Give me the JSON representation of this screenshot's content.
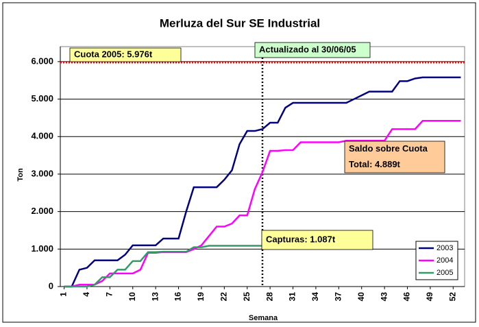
{
  "chart_data": {
    "type": "line",
    "title": "Merluza del Sur SE Industrial",
    "x_label": "Semana",
    "y_label": "Ton",
    "categories": [
      1,
      null,
      null,
      4,
      null,
      null,
      7,
      null,
      null,
      10,
      null,
      null,
      13,
      null,
      null,
      16,
      null,
      null,
      19,
      null,
      null,
      22,
      null,
      null,
      25,
      null,
      null,
      28,
      null,
      null,
      31,
      null,
      null,
      34,
      null,
      null,
      37,
      null,
      null,
      40,
      null,
      null,
      43,
      null,
      null,
      46,
      null,
      null,
      49,
      null,
      null,
      52,
      null
    ],
    "series": [
      {
        "name": "2003",
        "color": "#000080",
        "values": [
          0,
          0,
          450,
          500,
          700,
          700,
          700,
          700,
          850,
          1100,
          1100,
          1100,
          1100,
          1280,
          1280,
          1280,
          2000,
          2650,
          2650,
          2650,
          2650,
          2850,
          3100,
          3800,
          4150,
          4150,
          4200,
          4370,
          4370,
          4770,
          4900,
          4900,
          4900,
          4900,
          4900,
          4900,
          4900,
          4900,
          5000,
          5100,
          5200,
          5200,
          5200,
          5200,
          5480,
          5480,
          5550,
          5580,
          5580,
          5580,
          5580,
          5580,
          5580
        ]
      },
      {
        "name": "2004",
        "color": "#ff00ff",
        "values": [
          0,
          0,
          50,
          50,
          50,
          150,
          350,
          350,
          350,
          350,
          450,
          900,
          900,
          920,
          920,
          920,
          920,
          1000,
          1100,
          1350,
          1600,
          1600,
          1680,
          1900,
          1900,
          2600,
          3050,
          3620,
          3620,
          3640,
          3640,
          3850,
          3850,
          3850,
          3850,
          3850,
          3850,
          3890,
          3890,
          3890,
          3890,
          3890,
          3890,
          4200,
          4200,
          4200,
          4200,
          4420,
          4420,
          4420,
          4420,
          4420,
          4420
        ]
      },
      {
        "name": "2005",
        "color": "#339966",
        "values": [
          0,
          0,
          0,
          0,
          50,
          250,
          250,
          450,
          450,
          680,
          680,
          920,
          920,
          930,
          930,
          930,
          930,
          1050,
          1050,
          1087,
          1087,
          1087,
          1087,
          1087,
          1087,
          1087,
          1087,
          null,
          null,
          null,
          null,
          null,
          null,
          null,
          null,
          null,
          null,
          null,
          null,
          null,
          null,
          null,
          null,
          null,
          null,
          null,
          null,
          null,
          null,
          null,
          null,
          null,
          null
        ]
      }
    ],
    "ylim": [
      0,
      6400
    ],
    "yticks": [
      0,
      {
        "value": 1000,
        "label": "1.000"
      },
      {
        "value": 2000,
        "label": "2.000"
      },
      {
        "value": 3000,
        "label": "3.000"
      },
      {
        "value": 4000,
        "label": "4.000"
      },
      {
        "value": 5000,
        "label": "5.000"
      },
      {
        "value": 6000,
        "label": "6.000"
      }
    ],
    "grid": true,
    "legend": "bottom-right",
    "quota": 5976,
    "update_week": 27,
    "annotations": [
      {
        "lines": [
          "Cuota 2005: 5.976t"
        ],
        "color": "#ffff99"
      },
      {
        "lines": [
          "Actualizado al 30/06/05"
        ],
        "color": "#ccffcc"
      },
      {
        "lines": [
          "Saldo sobre Cuota",
          "Total: 4.889t"
        ],
        "color": "#ffcc99"
      },
      {
        "lines": [
          "Capturas: 1.087t"
        ],
        "color": "#ffff99"
      }
    ]
  }
}
